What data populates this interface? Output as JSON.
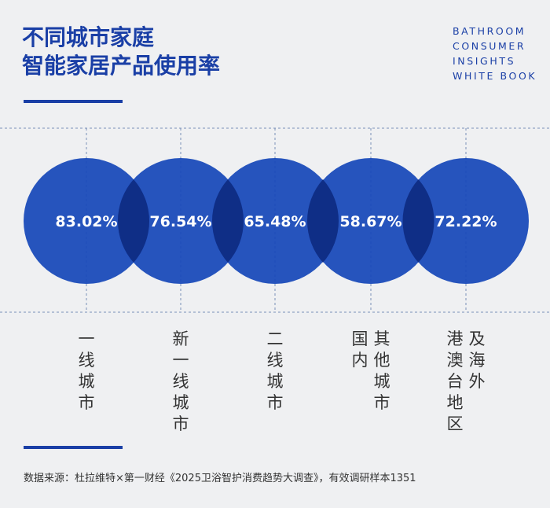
{
  "title": {
    "line1": "不同城市家庭",
    "line2": "智能家居产品使用率"
  },
  "brand": [
    "BATHROOM",
    "CONSUMER",
    "INSIGHTS",
    "WHITE BOOK"
  ],
  "source": "数据来源：杜拉维特×第一财经《2025卫浴智护消费趋势大调查》，有效调研样本1351",
  "colors": {
    "accent": "#1a3fa6",
    "circle": "#1547b8",
    "overlap": "#0f2e86",
    "grid": "#7a8fb8"
  },
  "chart_data": {
    "type": "bubble",
    "title": "不同城市家庭智能家居产品使用率",
    "categories": [
      "一线城市",
      "新一线城市",
      "二线城市",
      "其他城市",
      "港澳台地区及海外"
    ],
    "values": [
      83.02,
      76.54,
      65.48,
      58.67,
      72.22
    ],
    "value_labels": [
      "83.02%",
      "76.54%",
      "65.48%",
      "58.67%",
      "72.22%"
    ],
    "category_columns": [
      [
        [
          "一",
          "线",
          "城",
          "市"
        ]
      ],
      [
        [
          "新",
          "一",
          "线",
          "城",
          "市"
        ]
      ],
      [
        [
          "二",
          "线",
          "城",
          "市"
        ]
      ],
      [
        [
          "其",
          "他",
          "城",
          "市"
        ],
        [
          "国",
          "内"
        ]
      ],
      [
        [
          "及",
          "海",
          "外"
        ],
        [
          "港",
          "澳",
          "台",
          "地",
          "区"
        ]
      ]
    ]
  }
}
